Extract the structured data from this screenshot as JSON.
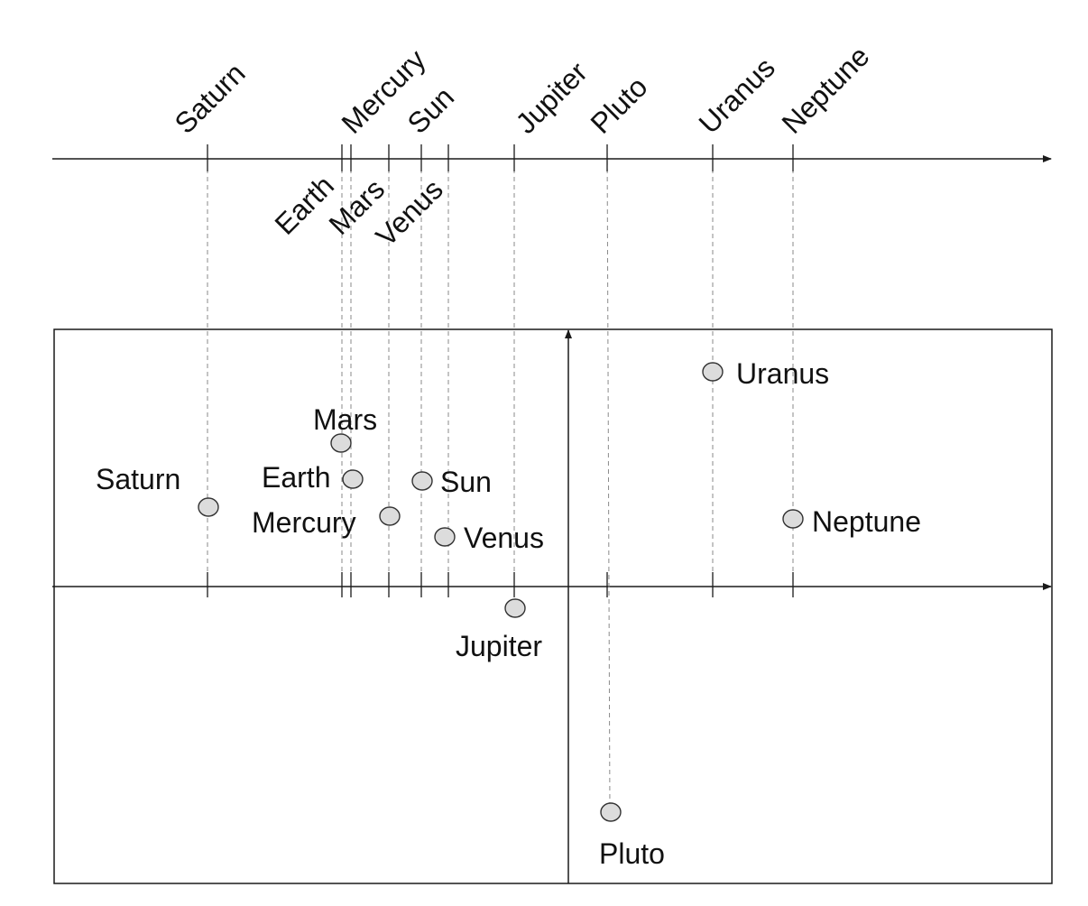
{
  "colors": {
    "point_fill": "#dcdcdc",
    "point_stroke": "#333333",
    "axis": "#1a1a1a",
    "dashed_line": "#8a8a8a"
  },
  "top_axis": {
    "labels_above": [
      "Saturn",
      "Mercury",
      "Sun",
      "Jupiter",
      "Pluto",
      "Uranus",
      "Neptune"
    ],
    "labels_below": [
      "Earth",
      "Mars",
      "Venus"
    ]
  },
  "plot": {
    "points": [
      {
        "name": "Saturn",
        "label": "Saturn",
        "label_side": "above-left"
      },
      {
        "name": "Earth",
        "label": "Earth",
        "label_side": "left"
      },
      {
        "name": "Mars",
        "label": "Mars",
        "label_side": "above"
      },
      {
        "name": "Mercury",
        "label": "Mercury",
        "label_side": "left"
      },
      {
        "name": "Sun",
        "label": "Sun",
        "label_side": "right"
      },
      {
        "name": "Venus",
        "label": "Venus",
        "label_side": "right"
      },
      {
        "name": "Jupiter",
        "label": "Jupiter",
        "label_side": "below"
      },
      {
        "name": "Pluto",
        "label": "Pluto",
        "label_side": "below"
      },
      {
        "name": "Uranus",
        "label": "Uranus",
        "label_side": "right"
      },
      {
        "name": "Neptune",
        "label": "Neptune",
        "label_side": "right"
      }
    ]
  }
}
